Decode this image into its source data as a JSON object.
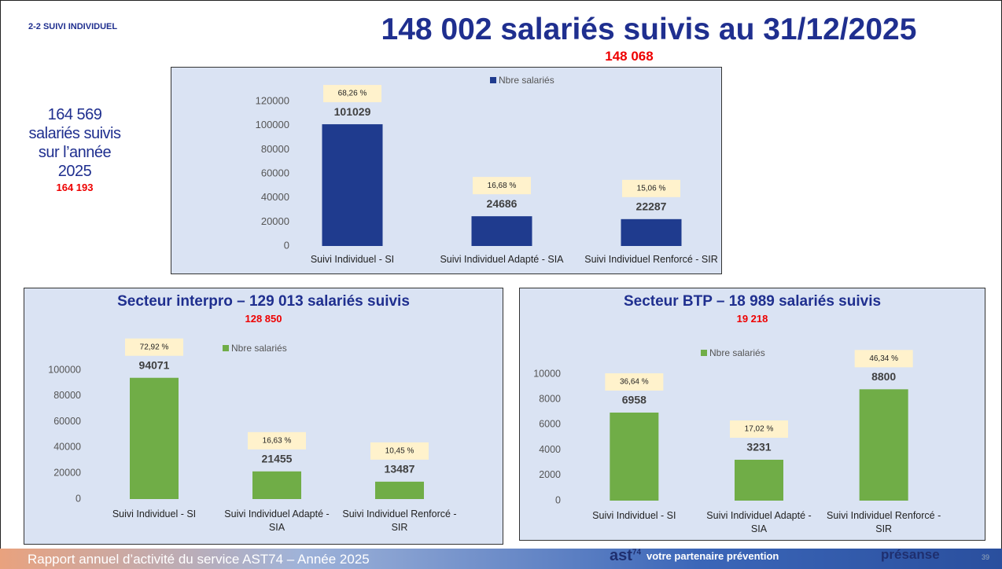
{
  "slide": {
    "section": "2-2 SUIVI INDIVIDUEL",
    "headline": "148 002 salariés suivis au 31/12/2025",
    "headline_correction": "148 068",
    "year_lines": [
      "164 569",
      "salariés suivis",
      "sur l’année",
      "2025"
    ],
    "year_correction": "164 193",
    "footer": "Rapport annuel d’activité du service AST74 – Année 2025",
    "brand": "ast",
    "brand_sup": "74",
    "tagline": "votre partenaire prévention",
    "partner": "présanse",
    "page": "39"
  },
  "chart_data": [
    {
      "type": "bar",
      "categories": [
        "Suivi Individuel - SI",
        "Suivi Individuel Adapté - SIA",
        "Suivi Individuel Renforcé - SIR"
      ],
      "series": [
        {
          "name": "Nbre salariés",
          "color": "#1f3b8e",
          "values": [
            101029,
            24686,
            22287
          ]
        }
      ],
      "annotations": [
        "68,26 %",
        "16,68 %",
        "15,06 %"
      ],
      "ylim": [
        0,
        120000
      ],
      "yticks": [
        0,
        20000,
        40000,
        60000,
        80000,
        100000,
        120000
      ],
      "grid": false
    },
    {
      "type": "bar",
      "title": "Secteur interpro – 129 013 salariés suivis",
      "subtitle": "128 850",
      "categories": [
        "Suivi Individuel - SI",
        "Suivi Individuel Adapté - SIA",
        "Suivi Individuel Renforcé - SIR"
      ],
      "series": [
        {
          "name": "Nbre salariés",
          "color": "#70ad47",
          "values": [
            94071,
            21455,
            13487
          ]
        }
      ],
      "annotations": [
        "72,92 %",
        "16,63 %",
        "10,45 %"
      ],
      "ylim": [
        0,
        100000
      ],
      "yticks": [
        0,
        20000,
        40000,
        60000,
        80000,
        100000
      ],
      "grid": false
    },
    {
      "type": "bar",
      "title": "Secteur BTP – 18 989 salariés suivis",
      "subtitle": "19 218",
      "categories": [
        "Suivi Individuel - SI",
        "Suivi Individuel Adapté - SIA",
        "Suivi Individuel Renforcé - SIR"
      ],
      "series": [
        {
          "name": "Nbre salariés",
          "color": "#70ad47",
          "values": [
            6958,
            3231,
            8800
          ]
        }
      ],
      "annotations": [
        "36,64 %",
        "17,02 %",
        "46,34 %"
      ],
      "ylim": [
        0,
        10000
      ],
      "yticks": [
        0,
        2000,
        4000,
        6000,
        8000,
        10000
      ],
      "grid": false
    }
  ]
}
